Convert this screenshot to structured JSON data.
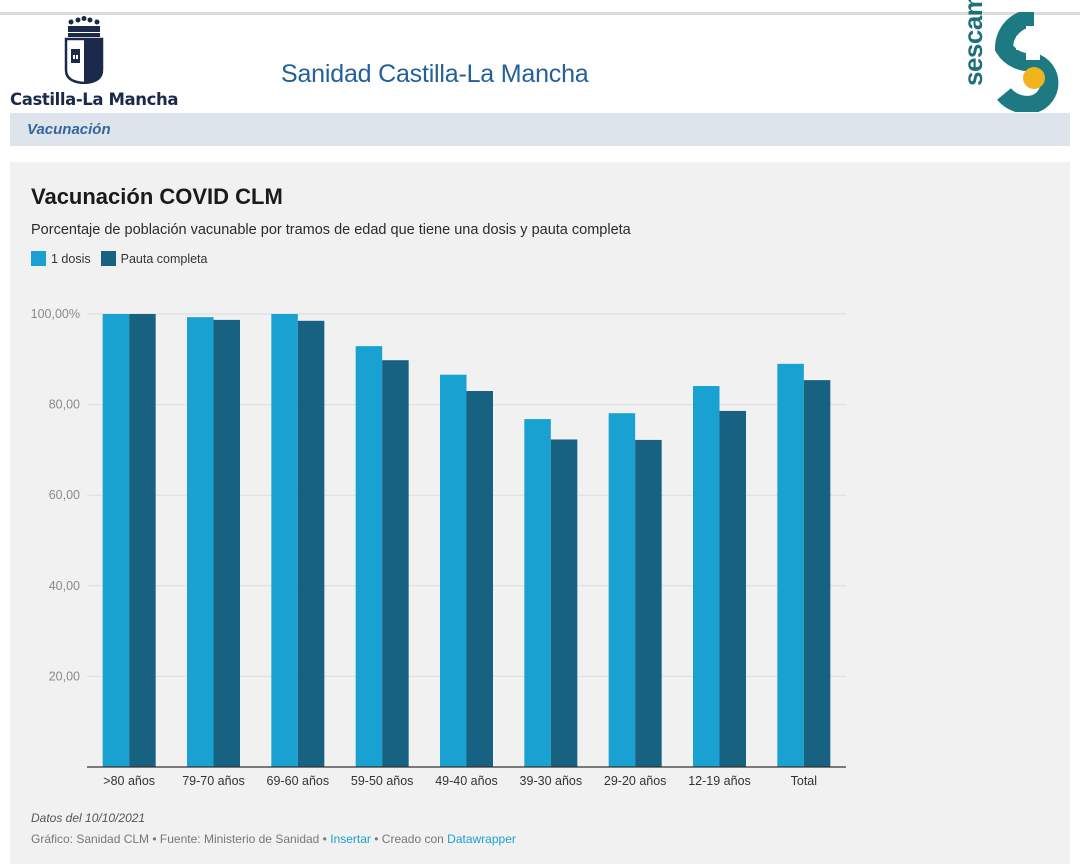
{
  "header": {
    "region_logo_text": "Castilla-La Mancha",
    "site_title": "Sanidad Castilla-La Mancha",
    "sescam_logo_text": "sescam"
  },
  "section": {
    "label": "Vacunación"
  },
  "colors": {
    "series_1": "#18a1d1",
    "series_2": "#166280",
    "header_blue": "#23609a",
    "panel_bg": "#f1f1f2"
  },
  "chart_data": {
    "type": "bar",
    "title": "Vacunación COVID CLM",
    "subtitle": "Porcentaje de población vacunable por tramos de edad que tiene una dosis y pauta completa",
    "categories": [
      ">80 años",
      "79-70 años",
      "69-60 años",
      "59-50 años",
      "49-40 años",
      "39-30 años",
      "29-20 años",
      "12-19 años",
      "Total"
    ],
    "series": [
      {
        "name": "1 dosis",
        "values": [
          100.0,
          99.3,
          100.0,
          92.9,
          86.6,
          76.8,
          78.1,
          84.1,
          89.0
        ]
      },
      {
        "name": "Pauta completa",
        "values": [
          100.0,
          98.7,
          98.5,
          89.8,
          83.0,
          72.3,
          72.2,
          78.6,
          85.4
        ]
      }
    ],
    "ylim": [
      0,
      100
    ],
    "yticks": [
      20,
      40,
      60,
      80,
      100
    ],
    "ytick_labels": [
      "20,00",
      "40,00",
      "60,00",
      "80,00",
      "100,00%"
    ],
    "grid": true,
    "legend_position": "top-left"
  },
  "footer": {
    "date_note": "Datos del 10/10/2021",
    "credits_prefix": "Gráfico: Sanidad CLM • Fuente: Ministerio de Sanidad • ",
    "insert_link": "Insertar",
    "credits_mid": " • Creado con ",
    "datawrapper_link": "Datawrapper"
  }
}
